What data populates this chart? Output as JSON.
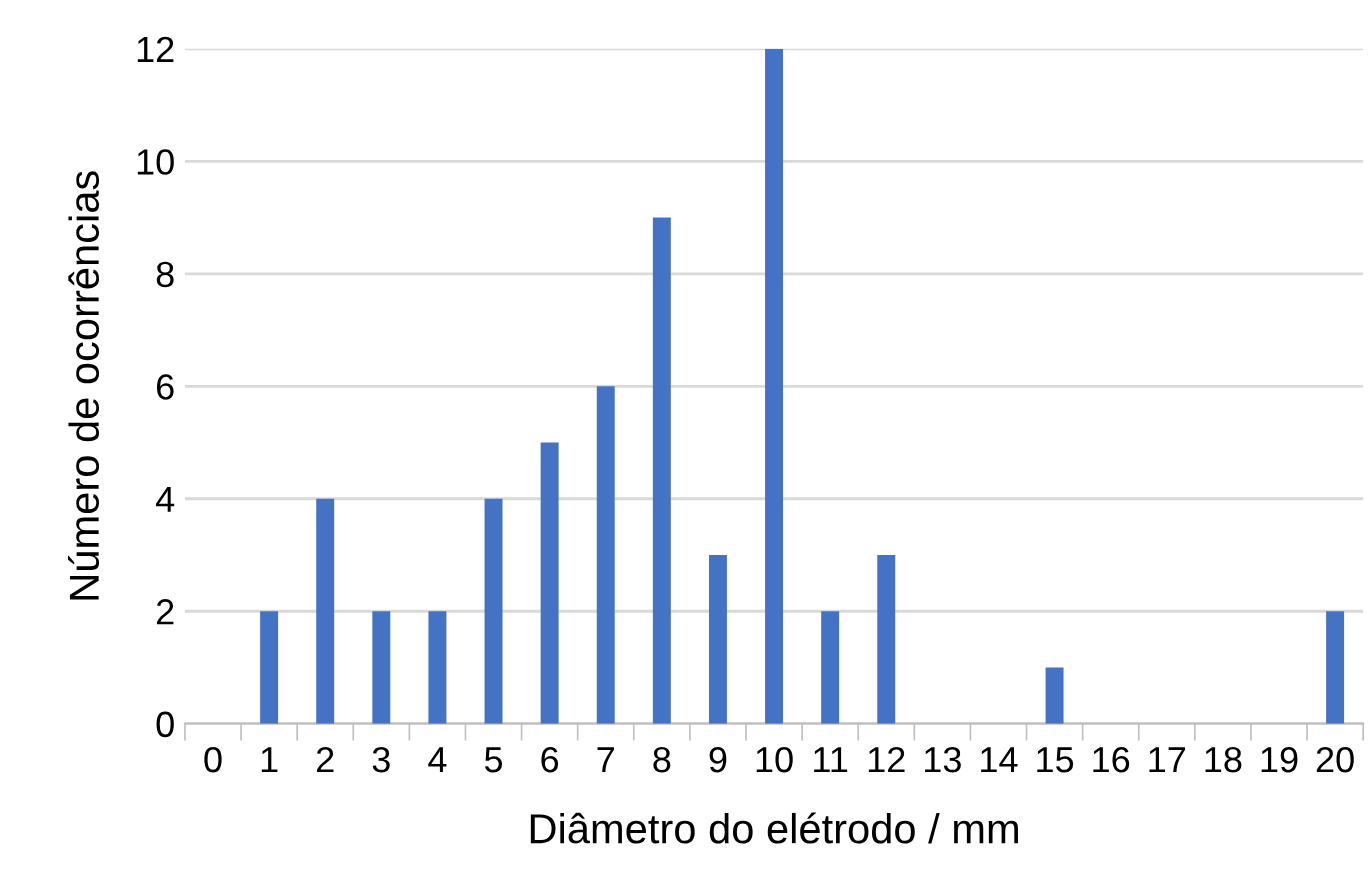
{
  "chart_data": {
    "type": "bar",
    "xlabel": "Diâmetro do elétrodo / mm",
    "ylabel": "Número de ocorrências",
    "categories": [
      "0",
      "1",
      "2",
      "3",
      "4",
      "5",
      "6",
      "7",
      "8",
      "9",
      "10",
      "11",
      "12",
      "13",
      "14",
      "15",
      "16",
      "17",
      "18",
      "19",
      "20"
    ],
    "values": [
      0,
      2,
      4,
      2,
      2,
      4,
      5,
      6,
      9,
      3,
      12,
      2,
      3,
      0,
      0,
      1,
      0,
      0,
      0,
      0,
      2
    ],
    "color": "#4472c4",
    "ylim": [
      0,
      12
    ],
    "yticks": [
      0,
      2,
      4,
      6,
      8,
      10,
      12
    ],
    "grid": "y"
  }
}
